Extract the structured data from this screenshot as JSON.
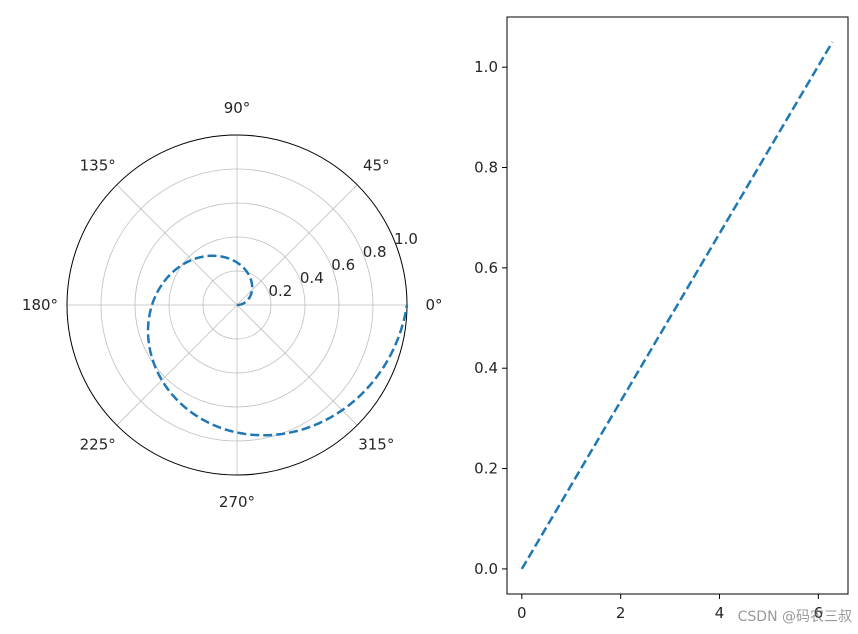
{
  "chart_data": [
    {
      "type": "line",
      "projection": "polar",
      "series_color": "#1f77b4",
      "line_style": "dashed",
      "theta_range": [
        0,
        6.283185
      ],
      "r_equals_theta_over_2pi": true,
      "rlim": [
        0,
        1.0
      ],
      "r_ticks": [
        "0.2",
        "0.4",
        "0.6",
        "0.8",
        "1.0"
      ],
      "r_tick_values": [
        0.2,
        0.4,
        0.6,
        0.8,
        1.0
      ],
      "theta_ticks": [
        "0°",
        "45°",
        "90°",
        "135°",
        "180°",
        "225°",
        "270°",
        "315°"
      ],
      "theta_tick_values": [
        0,
        45,
        90,
        135,
        180,
        225,
        270,
        315
      ],
      "grid": true
    },
    {
      "type": "line",
      "series_color": "#1f77b4",
      "line_style": "dashed",
      "x": [
        0,
        6.283185
      ],
      "y": [
        0,
        1.05
      ],
      "xlim": [
        -0.3,
        6.6
      ],
      "ylim": [
        -0.05,
        1.1
      ],
      "x_ticks": [
        "0",
        "2",
        "4",
        "6"
      ],
      "x_tick_values": [
        0,
        2,
        4,
        6
      ],
      "y_ticks": [
        "0.0",
        "0.2",
        "0.4",
        "0.6",
        "0.8",
        "1.0"
      ],
      "y_tick_values": [
        0.0,
        0.2,
        0.4,
        0.6,
        0.8,
        1.0
      ],
      "grid": false
    }
  ],
  "watermark": "CSDN @码农三叔"
}
